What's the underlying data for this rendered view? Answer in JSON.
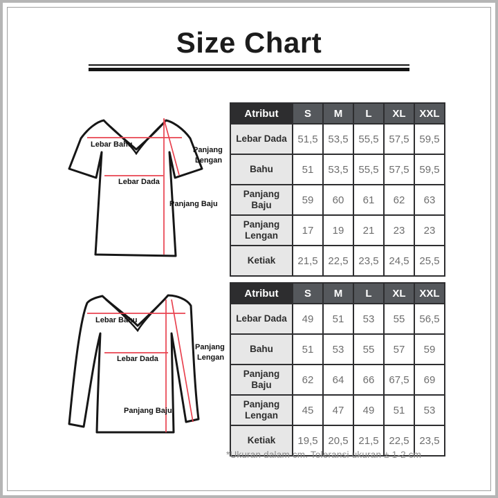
{
  "title": "Size Chart",
  "footer_note": "*Ukuran dalam cm. Toleransi ukuran ± 1-2 cm",
  "colors": {
    "accent_red": "#e8424f",
    "header_dark_bg": "#2d2d2f",
    "header_gray_bg": "#55585c",
    "attr_column_bg": "#e7e7e7",
    "table_border": "#2d2d2f",
    "value_text": "#6e6e6e"
  },
  "diagram_labels": {
    "lebar_bahu": "Lebar Bahu",
    "lebar_dada": "Lebar Dada",
    "panjang_baju": "Panjang Baju",
    "panjang_lengan_l1": "Panjang",
    "panjang_lengan_l2": "Lengan"
  },
  "tables": [
    {
      "name": "short-sleeve-size-table",
      "columns": [
        "Atribut",
        "S",
        "M",
        "L",
        "XL",
        "XXL"
      ],
      "rows": [
        {
          "label": "Lebar Dada",
          "values": [
            "51,5",
            "53,5",
            "55,5",
            "57,5",
            "59,5"
          ]
        },
        {
          "label": "Bahu",
          "values": [
            "51",
            "53,5",
            "55,5",
            "57,5",
            "59,5"
          ]
        },
        {
          "label": "Panjang Baju",
          "values": [
            "59",
            "60",
            "61",
            "62",
            "63"
          ]
        },
        {
          "label": "Panjang Lengan",
          "values": [
            "17",
            "19",
            "21",
            "23",
            "23"
          ]
        },
        {
          "label": "Ketiak",
          "values": [
            "21,5",
            "22,5",
            "23,5",
            "24,5",
            "25,5"
          ]
        }
      ]
    },
    {
      "name": "long-sleeve-size-table",
      "columns": [
        "Atribut",
        "S",
        "M",
        "L",
        "XL",
        "XXL"
      ],
      "rows": [
        {
          "label": "Lebar Dada",
          "values": [
            "49",
            "51",
            "53",
            "55",
            "56,5"
          ]
        },
        {
          "label": "Bahu",
          "values": [
            "51",
            "53",
            "55",
            "57",
            "59"
          ]
        },
        {
          "label": "Panjang Baju",
          "values": [
            "62",
            "64",
            "66",
            "67,5",
            "69"
          ]
        },
        {
          "label": "Panjang Lengan",
          "values": [
            "45",
            "47",
            "49",
            "51",
            "53"
          ]
        },
        {
          "label": "Ketiak",
          "values": [
            "19,5",
            "20,5",
            "21,5",
            "22,5",
            "23,5"
          ]
        }
      ]
    }
  ]
}
